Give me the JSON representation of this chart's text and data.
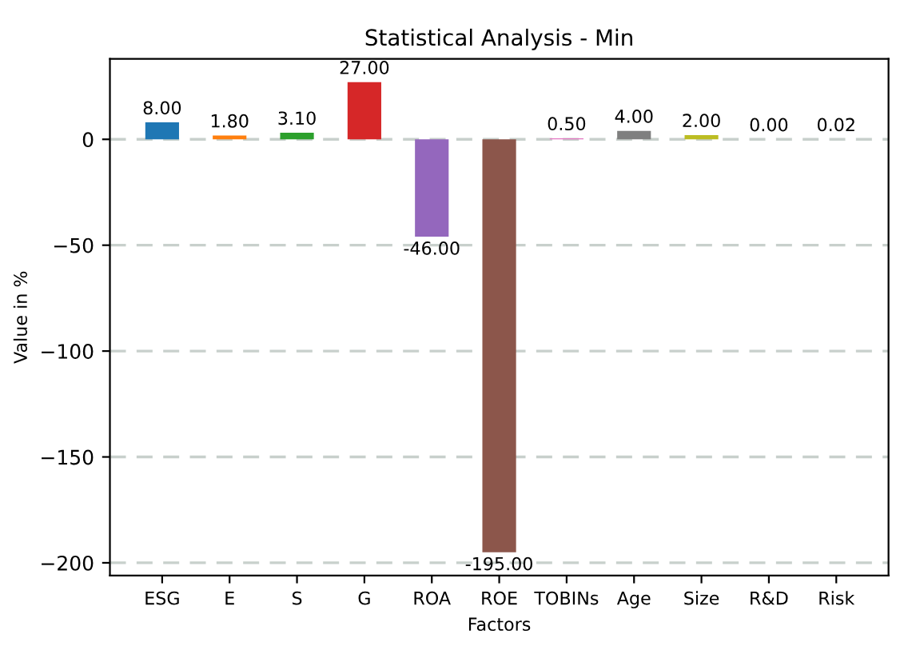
{
  "chart_data": {
    "type": "bar",
    "title": "Statistical Analysis - Min",
    "xlabel": "Factors",
    "ylabel": "Value in %",
    "categories": [
      "ESG",
      "E",
      "S",
      "G",
      "ROA",
      "ROE",
      "TOBINs",
      "Age",
      "Size",
      "R&D",
      "Risk"
    ],
    "values": [
      8,
      1.8,
      3.1,
      27,
      -46,
      -195,
      0.5,
      4,
      2,
      0,
      0.02
    ],
    "value_labels": [
      "8.00",
      "1.80",
      "3.10",
      "27.00",
      "-46.00",
      "-195.00",
      "0.50",
      "4.00",
      "2.00",
      "0.00",
      "0.02"
    ],
    "colors": [
      "#1f77b4",
      "#ff7f0e",
      "#2ca02c",
      "#d62728",
      "#9467bd",
      "#8c564b",
      "#e377c2",
      "#7f7f7f",
      "#bcbd22",
      "#17becf",
      "#1f77b4"
    ],
    "ylim": [
      -206,
      38
    ],
    "yticks": [
      -200,
      -150,
      -100,
      -50,
      0
    ],
    "grid": "y"
  }
}
